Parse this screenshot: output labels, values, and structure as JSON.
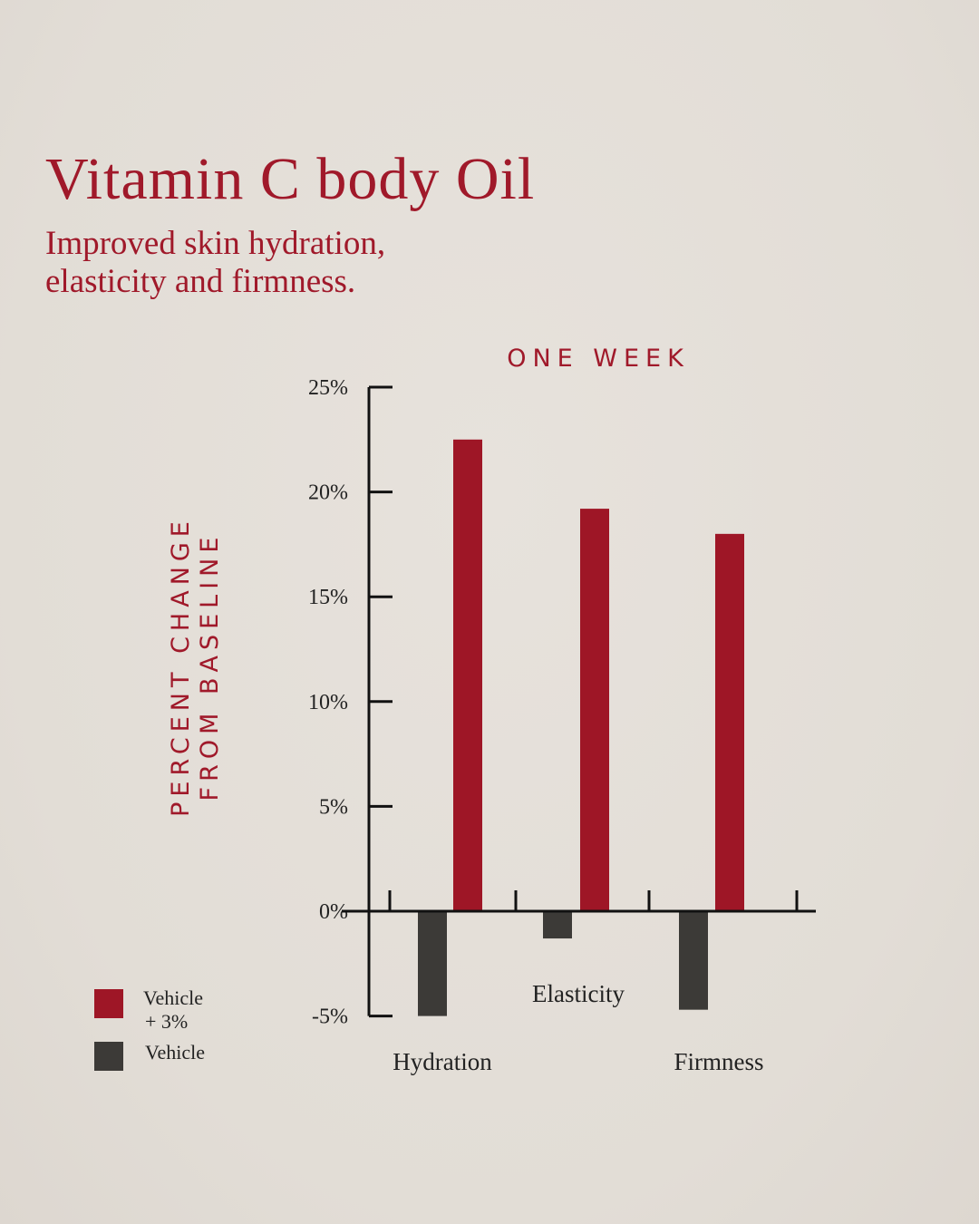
{
  "header": {
    "title": "Vitamin C body Oil",
    "subtitle_lines": [
      "Improved skin hydration,",
      "elasticity and firmness."
    ]
  },
  "colors": {
    "background": "#e4dfd9",
    "accent": "#a0192a",
    "bar_treatment": "#9e1626",
    "bar_vehicle": "#3c3a37",
    "axis": "#111111",
    "text_dark": "#222222"
  },
  "chart_data": {
    "type": "bar",
    "title": "ONE WEEK",
    "ylabel_lines": [
      "PERCENT CHANGE",
      "FROM BASELINE"
    ],
    "xlabel": "",
    "categories": [
      "Hydration",
      "Elasticity",
      "Firmness"
    ],
    "series": [
      {
        "name": "Vehicle + 3%",
        "legend_lines": [
          "Vehicle",
          "+ 3%"
        ],
        "values": [
          22.5,
          19.2,
          18.0
        ]
      },
      {
        "name": "Vehicle",
        "legend_lines": [
          "Vehicle"
        ],
        "values": [
          -5.0,
          -1.3,
          -4.7
        ]
      }
    ],
    "ylim": [
      -5,
      25
    ],
    "yticks": [
      25,
      20,
      15,
      10,
      5,
      0,
      -5
    ],
    "ytick_labels": [
      "25%",
      "20%",
      "15%",
      "10%",
      "5%",
      "0%",
      "-5%"
    ],
    "grid": false,
    "legend_position": "bottom-left"
  }
}
